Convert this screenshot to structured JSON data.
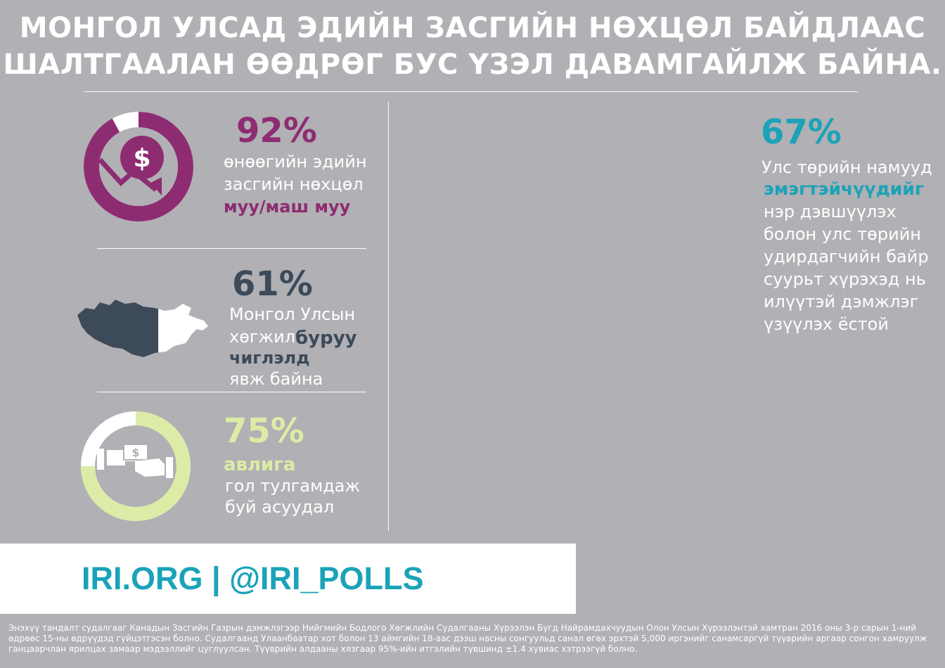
{
  "title": {
    "line1": "МОНГОЛ УЛСАД ЭДИЙН ЗАСГИЙН НӨХЦӨЛ БАЙДЛААС",
    "line2": "ШАЛТГААЛАН ӨӨДРӨГ БУС ҮЗЭЛ ДАВАМГАЙЛЖ БАЙНА."
  },
  "stats": {
    "economy": {
      "value": "92%",
      "line1": "өнөөгийн эдийн",
      "line2": "засгийн нөхцөл",
      "highlight": "муу/маш муу",
      "fraction": 0.92,
      "color": "#8e2c72",
      "icon": "dollar-down-trend-icon"
    },
    "direction": {
      "value": "61%",
      "line1": "Монгол Улсын",
      "line2": "хөгжил",
      "highlight1": "буруу",
      "highlight2": "чиглэлд",
      "line3": "явж байна",
      "fraction": 0.61,
      "color": "#3c4a59",
      "icon": "mongolia-map-icon"
    },
    "corruption": {
      "value": "75%",
      "highlight": "авлига",
      "line1": "гол тулгамдаж",
      "line2": "буй асуудал",
      "fraction": 0.75,
      "color": "#dceca6",
      "icon": "bribe-hand-icon"
    },
    "women": {
      "value": "67%",
      "line1": "Улс төрийн намууд",
      "highlight": "эмэгтэйчүүдийг",
      "line2": "нэр дэвшүүлэх",
      "line3": "болон улс төрийн",
      "line4": "удирдагчийн байр",
      "line5": "суурьт хүрэхэд нь",
      "line6": "илүүтэй дэмжлэг",
      "line7": "үзүүлэх ёстой",
      "fraction": 0.67,
      "color": "#1aa3b8",
      "icon": "women-podium-icon"
    }
  },
  "footer": {
    "brand": "IRI.ORG | @IRI_POLLS",
    "methodology": "Энэхүү тандалт судалгааг Канадын Засгийн Газрын дэмжлэгээр Нийгмийн Бодлого Хөгжлийн Судалгааны Хүрээлэн Бүгд Найрамдахчуудын Олон Улсын Хүрээлэнтэй хамтран 2016 оны 3-р сарын 1-ний өдрөөс 15-ны өдрүүдэд гүйцэтгэсэн болно. Судалгаанд Улаанбаатар хот болон 13 аймгийн 18-аас дээш насны сонгуульд санал өгөх эрхтэй 5,000 иргэнийг санамсаргүй түүврийн аргаар сонгон хамруулж ганцаарчлан ярилцах замаар мэдээллийг цуглуулсан. Түүврийн алдааны хязгаар 95%-ийн итгэлийн түвшинд ±1.4 хувиас хэтрээгүй болно."
  }
}
